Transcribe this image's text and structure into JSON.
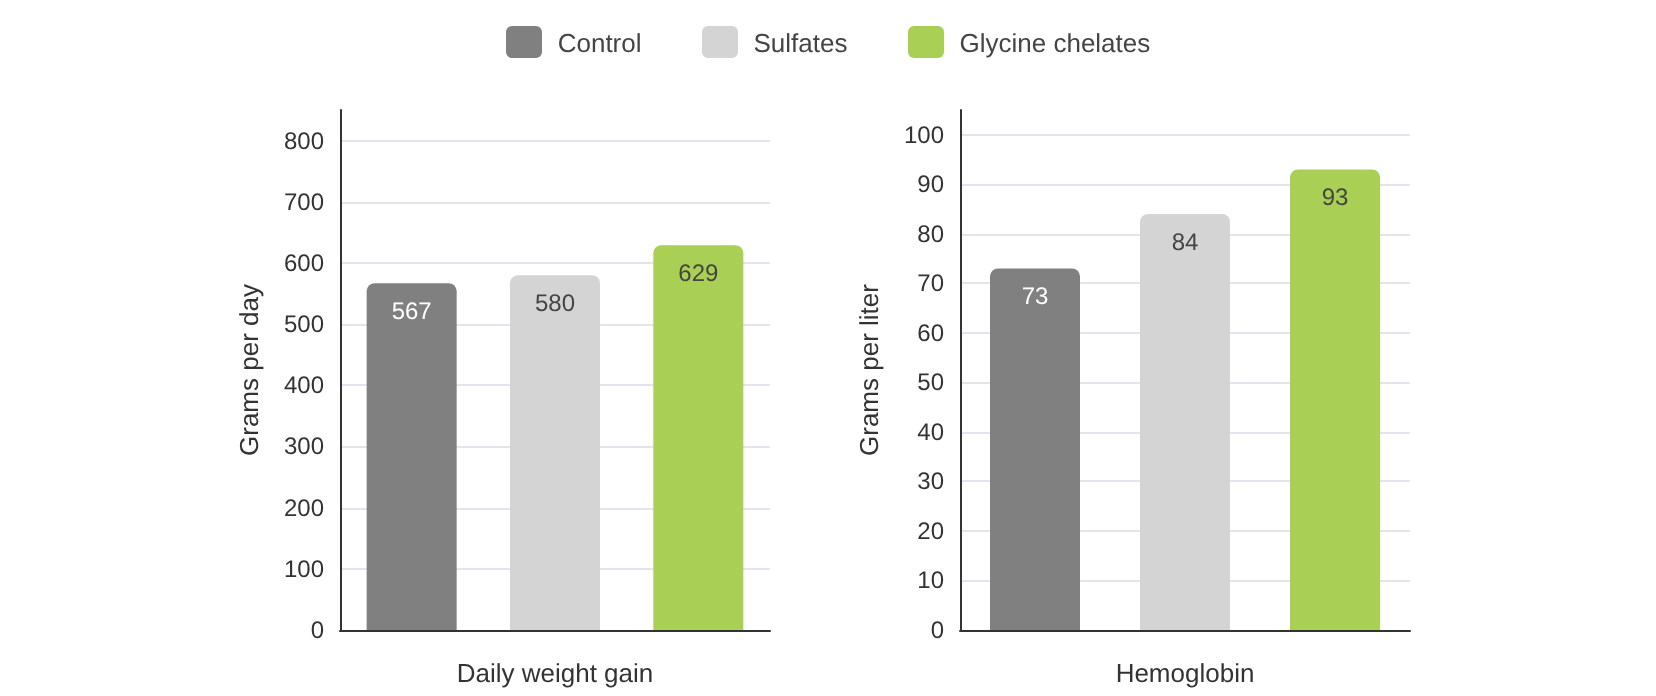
{
  "chart_data": [
    {
      "type": "bar",
      "ylabel": "Grams per day",
      "xlabel": "Daily weight gain",
      "categories": [
        null,
        null,
        null
      ],
      "series": [
        {
          "name": "Control",
          "color": "#808080",
          "values": [
            567,
            null,
            null
          ]
        },
        {
          "name": "Sulfates",
          "color": "#d4d4d4",
          "values": [
            null,
            580,
            null
          ]
        },
        {
          "name": "Glycine chelates",
          "color": "#a9cf54",
          "values": [
            null,
            null,
            629
          ]
        }
      ],
      "ylim": [
        0,
        850
      ],
      "yticks": [
        0,
        100,
        200,
        300,
        400,
        500,
        600,
        700,
        800
      ],
      "grid": "y",
      "data_labels": true,
      "legend": "top"
    },
    {
      "type": "bar",
      "ylabel": "Grams per liter",
      "xlabel": "Hemoglobin",
      "categories": [
        null,
        null,
        null
      ],
      "series": [
        {
          "color": "#808080",
          "values": [
            73,
            null,
            null
          ]
        },
        {
          "color": "#d4d4d4",
          "values": [
            null,
            84,
            null
          ]
        },
        {
          "color": "#a9cf54",
          "values": [
            null,
            null,
            93
          ]
        }
      ],
      "ylim": [
        0,
        105
      ],
      "yticks": [
        0,
        10,
        20,
        30,
        40,
        50,
        60,
        70,
        80,
        90,
        100
      ],
      "grid": "y",
      "data_labels": true
    }
  ]
}
